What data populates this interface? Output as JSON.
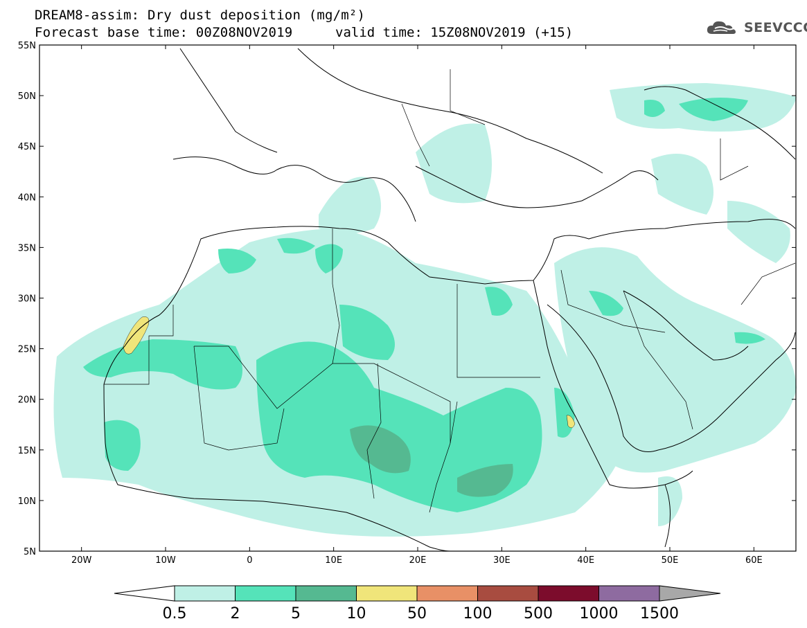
{
  "header": {
    "line1": "DREAM8-assim: Dry dust deposition (mg/m²)",
    "line2": "Forecast base time: 00Z08NOV2019",
    "line3": "valid time: 15Z08NOV2019 (+15)"
  },
  "logo": {
    "text": "SEEVCCC",
    "icon": "cloud-icon"
  },
  "map": {
    "lon_range": [
      -25,
      65
    ],
    "lat_range": [
      5,
      55
    ],
    "lat_labels": [
      "55N",
      "50N",
      "45N",
      "40N",
      "35N",
      "30N",
      "25N",
      "20N",
      "15N",
      "10N",
      "5N"
    ],
    "lon_labels": [
      "20W",
      "10W",
      "0",
      "10E",
      "20E",
      "30E",
      "40E",
      "50E",
      "60E"
    ]
  },
  "colorbar": {
    "labels": [
      "0.5",
      "2",
      "5",
      "10",
      "50",
      "100",
      "500",
      "1000",
      "1500"
    ],
    "colors": [
      "#bff0e6",
      "#55e3b9",
      "#55b991",
      "#f0e57a",
      "#e89066",
      "#a84c40",
      "#7c0c2c",
      "#8e6ba0"
    ],
    "under_color": "#ffffff",
    "over_color": "#a8a8a8"
  }
}
